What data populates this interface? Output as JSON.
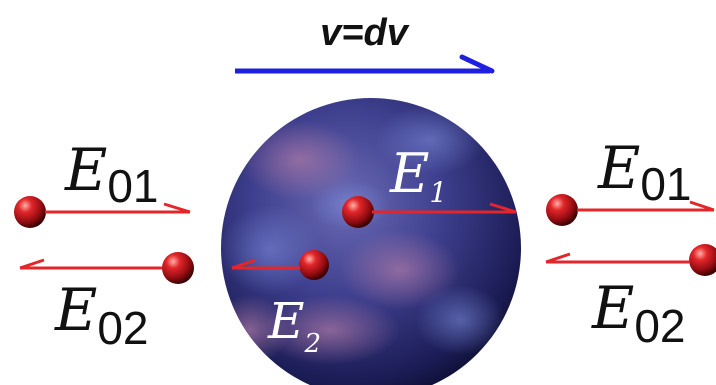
{
  "velocity_label": "v=dv",
  "labels": {
    "E1": {
      "letter": "E",
      "subscript": "1"
    },
    "E2": {
      "letter": "E",
      "subscript": "2"
    },
    "E01_left": {
      "letter": "E",
      "subscript": "01"
    },
    "E02_left": {
      "letter": "E",
      "subscript": "02"
    },
    "E01_right": {
      "letter": "E",
      "subscript": "01"
    },
    "E02_right": {
      "letter": "E",
      "subscript": "02"
    }
  },
  "colors": {
    "velocity_arrow": "#1f1fe0",
    "field_arrow": "#e3262a",
    "sphere_main": "#3e3f8e",
    "sphere_dark": "#0c0d2e",
    "ball": "#c0141a",
    "text": "#111111"
  }
}
